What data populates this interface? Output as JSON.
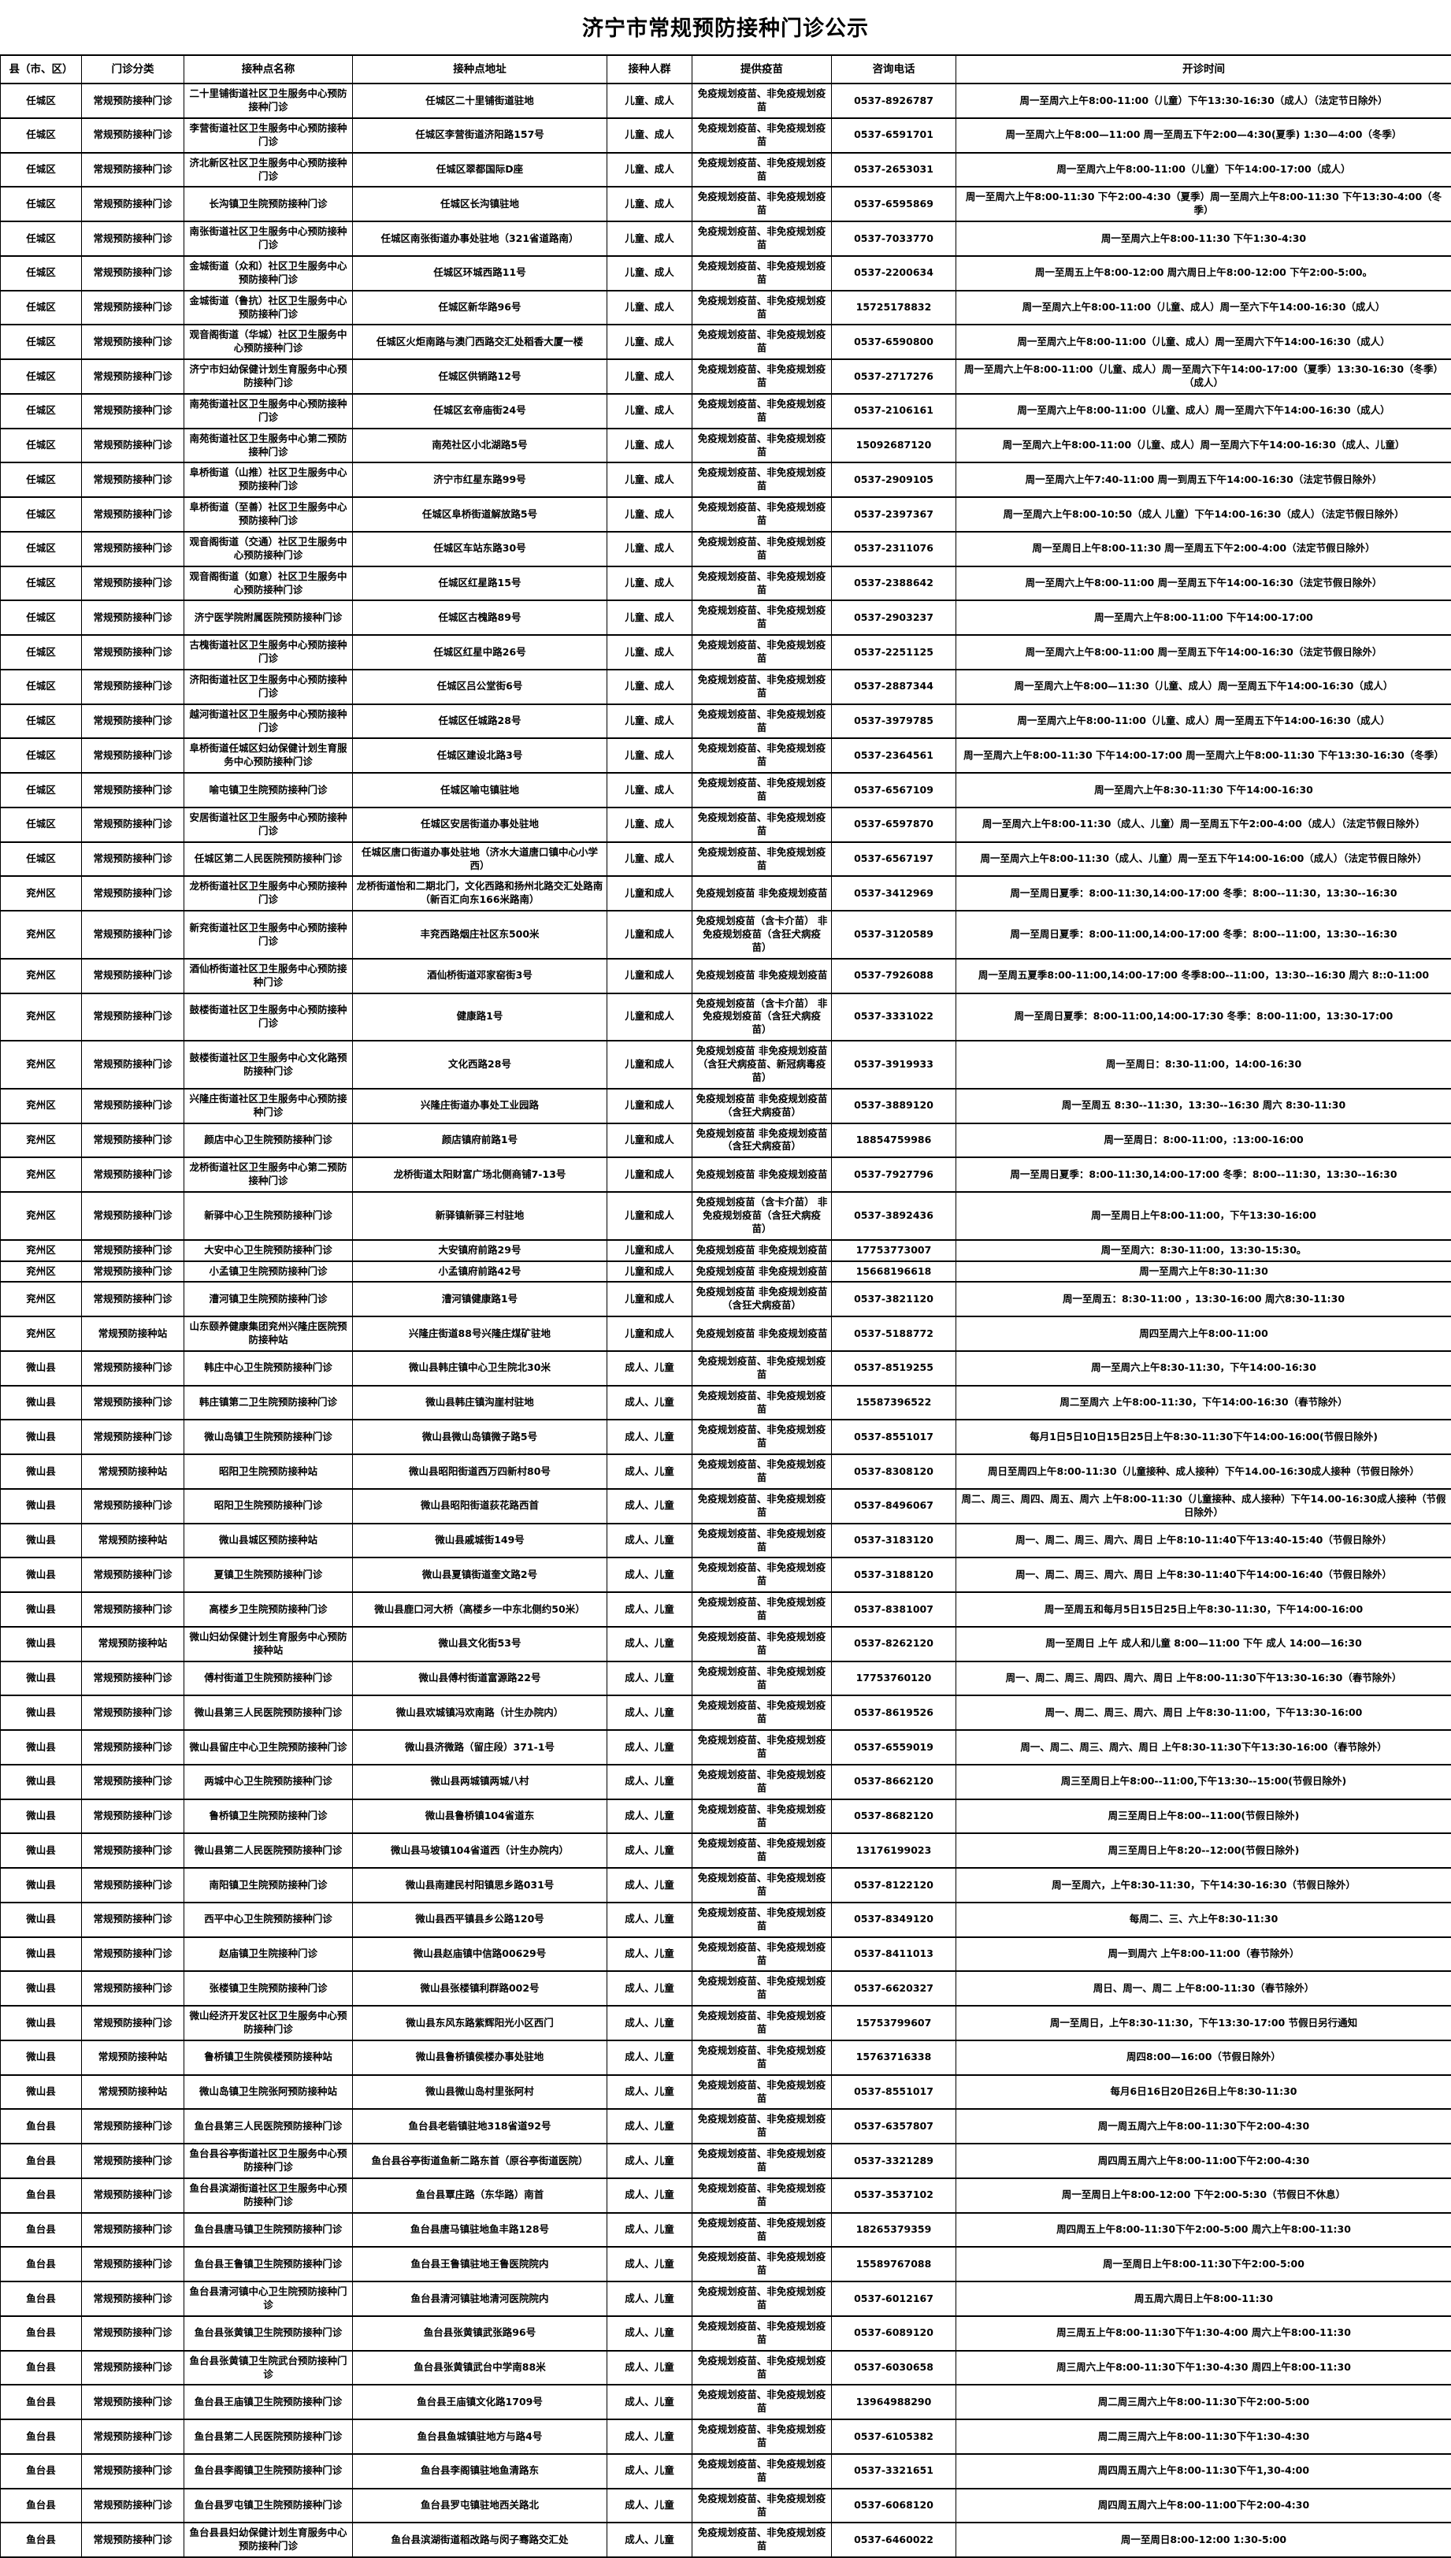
{
  "title": "济宁市常规预防接种门诊公示",
  "table": {
    "headers": [
      "县（市、区）",
      "门诊分类",
      "接种点名称",
      "接种点地址",
      "接种人群",
      "提供疫苗",
      "咨询电话",
      "开诊时间"
    ],
    "rows": [
      [
        "任城区",
        "常规预防接种门诊",
        "二十里铺街道社区卫生服务中心预防接种门诊",
        "任城区二十里铺街道驻地",
        "儿童、成人",
        "免疫规划疫苗、非免疫规划疫苗",
        "0537-8926787",
        "周一至周六上午8:00-11:00（儿童）下午13:30-16:30（成人）（法定节日除外）"
      ],
      [
        "任城区",
        "常规预防接种门诊",
        "李营街道社区卫生服务中心预防接种门诊",
        "任城区李营街道济阳路157号",
        "儿童、成人",
        "免疫规划疫苗、非免疫规划疫苗",
        "0537-6591701",
        "周一至周六上午8:00—11:00 周一至周五下午2:00—4:30(夏季) 1:30—4:00（冬季）"
      ],
      [
        "任城区",
        "常规预防接种门诊",
        "济北新区社区卫生服务中心预防接种门诊",
        "任城区翠都国际D座",
        "儿童、成人",
        "免疫规划疫苗、非免疫规划疫苗",
        "0537-2653031",
        "周一至周六上午8:00-11:00（儿童）下午14:00-17:00（成人）"
      ],
      [
        "任城区",
        "常规预防接种门诊",
        "长沟镇卫生院预防接种门诊",
        "任城区长沟镇驻地",
        "儿童、成人",
        "免疫规划疫苗、非免疫规划疫苗",
        "0537-6595869",
        "周一至周六上午8:00-11:30 下午2:00-4:30（夏季）周一至周六上午8:00-11:30 下午13:30-4:00（冬季）"
      ],
      [
        "任城区",
        "常规预防接种门诊",
        "南张街道社区卫生服务中心预防接种门诊",
        "任城区南张街道办事处驻地（321省道路南）",
        "儿童、成人",
        "免疫规划疫苗、非免疫规划疫苗",
        "0537-7033770",
        "周一至周六上午8:00-11:30 下午1:30-4:30"
      ],
      [
        "任城区",
        "常规预防接种门诊",
        "金城街道（众和）社区卫生服务中心预防接种门诊",
        "任城区环城西路11号",
        "儿童、成人",
        "免疫规划疫苗、非免疫规划疫苗",
        "0537-2200634",
        "周一至周五上午8:00-12:00 周六周日上午8:00-12:00 下午2:00-5:00。"
      ],
      [
        "任城区",
        "常规预防接种门诊",
        "金城街道（鲁抗）社区卫生服务中心预防接种门诊",
        "任城区新华路96号",
        "儿童、成人",
        "免疫规划疫苗、非免疫规划疫苗",
        "15725178832",
        "周一至周六上午8:00-11:00（儿童、成人）周一至六下午14:00-16:30（成人）"
      ],
      [
        "任城区",
        "常规预防接种门诊",
        "观音阁街道（华城）社区卫生服务中心预防接种门诊",
        "任城区火炬南路与澳门西路交汇处稻香大厦一楼",
        "儿童、成人",
        "免疫规划疫苗、非免疫规划疫苗",
        "0537-6590800",
        "周一至周六上午8:00-11:00（儿童、成人）周一至周六下午14:00-16:30（成人）"
      ],
      [
        "任城区",
        "常规预防接种门诊",
        "济宁市妇幼保健计划生育服务中心预防接种门诊",
        "任城区供销路12号",
        "儿童、成人",
        "免疫规划疫苗、非免疫规划疫苗",
        "0537-2717276",
        "周一至周六上午8:00-11:00（儿童、成人）周一至周六下午14:00-17:00（夏季）13:30-16:30（冬季）（成人）"
      ],
      [
        "任城区",
        "常规预防接种门诊",
        "南苑街道社区卫生服务中心预防接种门诊",
        "任城区玄帝庙街24号",
        "儿童、成人",
        "免疫规划疫苗、非免疫规划疫苗",
        "0537-2106161",
        "周一至周六上午8:00-11:00（儿童、成人）周一至周六下午14:00-16:30（成人）"
      ],
      [
        "任城区",
        "常规预防接种门诊",
        "南苑街道社区卫生服务中心第二预防接种门诊",
        "南苑社区小北湖路5号",
        "儿童、成人",
        "免疫规划疫苗、非免疫规划疫苗",
        "15092687120",
        "周一至周六上午8:00-11:00（儿童、成人）周一至周六下午14:00-16:30（成人、儿童）"
      ],
      [
        "任城区",
        "常规预防接种门诊",
        "阜桥街道（山推）社区卫生服务中心预防接种门诊",
        "济宁市红星东路99号",
        "儿童、成人",
        "免疫规划疫苗、非免疫规划疫苗",
        "0537-2909105",
        "周一至周六上午7:40-11:00 周一到周五下午14:00-16:30（法定节假日除外）"
      ],
      [
        "任城区",
        "常规预防接种门诊",
        "阜桥街道（至善）社区卫生服务中心预防接种门诊",
        "任城区阜桥街道解放路5号",
        "儿童、成人",
        "免疫规划疫苗、非免疫规划疫苗",
        "0537-2397367",
        "周一至周六上午8:00-10:50（成人 儿童）下午14:00-16:30（成人）（法定节假日除外）"
      ],
      [
        "任城区",
        "常规预防接种门诊",
        "观音阁街道（交通）社区卫生服务中心预防接种门诊",
        "任城区车站东路30号",
        "儿童、成人",
        "免疫规划疫苗、非免疫规划疫苗",
        "0537-2311076",
        "周一至周日上午8:00-11:30 周一至周五下午2:00-4:00（法定节假日除外）"
      ],
      [
        "任城区",
        "常规预防接种门诊",
        "观音阁街道（如意）社区卫生服务中心预防接种门诊",
        "任城区红星路15号",
        "儿童、成人",
        "免疫规划疫苗、非免疫规划疫苗",
        "0537-2388642",
        "周一至周六上午8:00-11:00 周一至周五下午14:00-16:30（法定节假日除外）"
      ],
      [
        "任城区",
        "常规预防接种门诊",
        "济宁医学院附属医院预防接种门诊",
        "任城区古槐路89号",
        "儿童、成人",
        "免疫规划疫苗、非免疫规划疫苗",
        "0537-2903237",
        "周一至周六上午8:00-11:00 下午14:00-17:00"
      ],
      [
        "任城区",
        "常规预防接种门诊",
        "古槐街道社区卫生服务中心预防接种门诊",
        "任城区红星中路26号",
        "儿童、成人",
        "免疫规划疫苗、非免疫规划疫苗",
        "0537-2251125",
        "周一至周六上午8:00-11:00 周一至周五下午14:00-16:30（法定节假日除外）"
      ],
      [
        "任城区",
        "常规预防接种门诊",
        "济阳街道社区卫生服务中心预防接种门诊",
        "任城区吕公堂街6号",
        "儿童、成人",
        "免疫规划疫苗、非免疫规划疫苗",
        "0537-2887344",
        "周一至周六上午8:00—11:30（儿童、成人）周一至周五下午14:00-16:30（成人）"
      ],
      [
        "任城区",
        "常规预防接种门诊",
        "越河街道社区卫生服务中心预防接种门诊",
        "任城区任城路28号",
        "儿童、成人",
        "免疫规划疫苗、非免疫规划疫苗",
        "0537-3979785",
        "周一至周六上午8:00-11:00（儿童、成人）周一至周五下午14:00-16:30（成人）"
      ],
      [
        "任城区",
        "常规预防接种门诊",
        "阜桥街道任城区妇幼保健计划生育服务中心预防接种门诊",
        "任城区建设北路3号",
        "儿童、成人",
        "免疫规划疫苗、非免疫规划疫苗",
        "0537-2364561",
        "周一至周六上午8:00-11:30 下午14:00-17:00 周一至周六上午8:00-11:30 下午13:30-16:30（冬季）"
      ],
      [
        "任城区",
        "常规预防接种门诊",
        "喻屯镇卫生院预防接种门诊",
        "任城区喻屯镇驻地",
        "儿童、成人",
        "免疫规划疫苗、非免疫规划疫苗",
        "0537-6567109",
        "周一至周六上午8:30-11:30 下午14:00-16:30"
      ],
      [
        "任城区",
        "常规预防接种门诊",
        "安居街道社区卫生服务中心预防接种门诊",
        "任城区安居街道办事处驻地",
        "儿童、成人",
        "免疫规划疫苗、非免疫规划疫苗",
        "0537-6597870",
        "周一至周六上午8:00-11:30（成人、儿童）周一至周五下午2:00-4:00（成人）（法定节假日除外）"
      ],
      [
        "任城区",
        "常规预防接种门诊",
        "任城区第二人民医院预防接种门诊",
        "任城区唐口街道办事处驻地（济水大道唐口镇中心小学西）",
        "儿童、成人",
        "免疫规划疫苗、非免疫规划疫苗",
        "0537-6567197",
        "周一至周六上午8:00-11:30（成人、儿童）周一至五下午14:00-16:00（成人）（法定节假日除外）"
      ],
      [
        "兖州区",
        "常规预防接种门诊",
        "龙桥街道社区卫生服务中心预防接种门诊",
        "龙桥街道怡和二期北门，文化西路和扬州北路交汇处路南（新百汇向东166米路南）",
        "儿童和成人",
        "免疫规划疫苗 非免疫规划疫苗",
        "0537-3412969",
        "周一至周日夏季：8:00-11:30,14:00-17:00 冬季：8:00--11:30，13:30--16:30"
      ],
      [
        "兖州区",
        "常规预防接种门诊",
        "新兖街道社区卫生服务中心预防接种门诊",
        "丰兖西路烟庄社区东500米",
        "儿童和成人",
        "免疫规划疫苗（含卡介苗） 非免疫规划疫苗（含狂犬病疫苗）",
        "0537-3120589",
        "周一至周日夏季：8:00-11:00,14:00-17:00 冬季：8:00--11:00，13:30--16:30"
      ],
      [
        "兖州区",
        "常规预防接种门诊",
        "酒仙桥街道社区卫生服务中心预防接种门诊",
        "酒仙桥街道邓家窑街3号",
        "儿童和成人",
        "免疫规划疫苗 非免疫规划疫苗",
        "0537-7926088",
        "周一至周五夏季8:00-11:00,14:00-17:00 冬季8:00--11:00，13:30--16:30 周六 8::0-11:00"
      ],
      [
        "兖州区",
        "常规预防接种门诊",
        "鼓楼街道社区卫生服务中心预防接种门诊",
        "健康路1号",
        "儿童和成人",
        "免疫规划疫苗（含卡介苗） 非免疫规划疫苗（含狂犬病疫苗）",
        "0537-3331022",
        "周一至周日夏季：8:00-11:00,14:00-17:30 冬季：8:00-11:00，13:30-17:00"
      ],
      [
        "兖州区",
        "常规预防接种门诊",
        "鼓楼街道社区卫生服务中心文化路预防接种门诊",
        "文化西路28号",
        "儿童和成人",
        "免疫规划疫苗 非免疫规划疫苗（含狂犬病疫苗、新冠病毒疫苗）",
        "0537-3919933",
        "周一至周日：8:30-11:00，14:00-16:30"
      ],
      [
        "兖州区",
        "常规预防接种门诊",
        "兴隆庄街道社区卫生服务中心预防接种门诊",
        "兴隆庄街道办事处工业园路",
        "儿童和成人",
        "免疫规划疫苗 非免疫规划疫苗（含狂犬病疫苗）",
        "0537-3889120",
        "周一至周五 8:30--11:30，13:30--16:30 周六 8:30-11:30"
      ],
      [
        "兖州区",
        "常规预防接种门诊",
        "颜店中心卫生院预防接种门诊",
        "颜店镇府前路1号",
        "儿童和成人",
        "免疫规划疫苗 非免疫规划疫苗（含狂犬病疫苗）",
        "18854759986",
        "周一至周日：8:00-11:00，:13:00-16:00"
      ],
      [
        "兖州区",
        "常规预防接种门诊",
        "龙桥街道社区卫生服务中心第二预防接种门诊",
        "龙桥街道太阳财富广场北侧商铺7-13号",
        "儿童和成人",
        "免疫规划疫苗 非免疫规划疫苗",
        "0537-7927796",
        "周一至周日夏季：8:00-11:30,14:00-17:00 冬季：8:00--11:30，13:30--16:30"
      ],
      [
        "兖州区",
        "常规预防接种门诊",
        "新驿中心卫生院预防接种门诊",
        "新驿镇新驿三村驻地",
        "儿童和成人",
        "免疫规划疫苗（含卡介苗） 非免疫规划疫苗（含狂犬病疫苗）",
        "0537-3892436",
        "周一至周日上午8:00-11:00，下午13:30-16:00"
      ],
      [
        "兖州区",
        "常规预防接种门诊",
        "大安中心卫生院预防接种门诊",
        "大安镇府前路29号",
        "儿童和成人",
        "免疫规划疫苗 非免疫规划疫苗",
        "17753773007",
        "周一至周六：8:30-11:00，13:30-15:30。"
      ],
      [
        "兖州区",
        "常规预防接种门诊",
        "小孟镇卫生院预防接种门诊",
        "小孟镇府前路42号",
        "儿童和成人",
        "免疫规划疫苗 非免疫规划疫苗",
        "15668196618",
        "周一至周六上午8:30-11:30"
      ],
      [
        "兖州区",
        "常规预防接种门诊",
        "漕河镇卫生院预防接种门诊",
        "漕河镇健康路1号",
        "儿童和成人",
        "免疫规划疫苗 非免疫规划疫苗（含狂犬病疫苗）",
        "0537-3821120",
        "周一至周五：8:30-11:00 ，13:30-16:00 周六8:30-11:30"
      ],
      [
        "兖州区",
        "常规预防接种站",
        "山东颐养健康集团兖州兴隆庄医院预防接种站",
        "兴隆庄街道88号兴隆庄煤矿驻地",
        "儿童和成人",
        "免疫规划疫苗 非免疫规划疫苗",
        "0537-5188772",
        "周四至周六上午8:00-11:00"
      ],
      [
        "微山县",
        "常规预防接种门诊",
        "韩庄中心卫生院预防接种门诊",
        "微山县韩庄镇中心卫生院北30米",
        "成人、儿童",
        "免疫规划疫苗、非免疫规划疫苗",
        "0537-8519255",
        "周一至周六上午8:30-11:30，下午14:00-16:30"
      ],
      [
        "微山县",
        "常规预防接种门诊",
        "韩庄镇第二卫生院预防接种门诊",
        "微山县韩庄镇沟崖村驻地",
        "成人、儿童",
        "免疫规划疫苗、非免疫规划疫苗",
        "15587396522",
        "周二至周六 上午8:00-11:30，下午14:00-16:30（春节除外）"
      ],
      [
        "微山县",
        "常规预防接种门诊",
        "微山岛镇卫生院预防接种门诊",
        "微山县微山岛镇微子路5号",
        "成人、儿童",
        "免疫规划疫苗、非免疫规划疫苗",
        "0537-8551017",
        "每月1日5日10日15日25日上午8:30-11:30下午14:00-16:00(节假日除外)"
      ],
      [
        "微山县",
        "常规预防接种站",
        "昭阳卫生院预防接种站",
        "微山县昭阳街道西万四新村80号",
        "成人、儿童",
        "免疫规划疫苗、非免疫规划疫苗",
        "0537-8308120",
        "周日至周四上午8:00-11:30（儿童接种、成人接种）下午14.00-16:30成人接种（节假日除外）"
      ],
      [
        "微山县",
        "常规预防接种门诊",
        "昭阳卫生院预防接种门诊",
        "微山县昭阳街道荻花路西首",
        "成人、儿童",
        "免疫规划疫苗、非免疫规划疫苗",
        "0537-8496067",
        "周二、周三、周四、周五、周六 上午8:00-11:30（儿童接种、成人接种）下午14.00-16:30成人接种（节假日除外）"
      ],
      [
        "微山县",
        "常规预防接种站",
        "微山县城区预防接种站",
        "微山县戚城街149号",
        "成人、儿童",
        "免疫规划疫苗、非免疫规划疫苗",
        "0537-3183120",
        "周一、周二、周三、周六、周日 上午8:10-11:40下午13:40-15:40（节假日除外）"
      ],
      [
        "微山县",
        "常规预防接种门诊",
        "夏镇卫生院预防接种门诊",
        "微山县夏镇街道奎文路2号",
        "成人、儿童",
        "免疫规划疫苗、非免疫规划疫苗",
        "0537-3188120",
        "周一、周二、周三、周六、周日 上午8:30-11:40下午14:00-16:40（节假日除外）"
      ],
      [
        "微山县",
        "常规预防接种门诊",
        "高楼乡卫生院预防接种门诊",
        "微山县鹿口河大桥（高楼乡一中东北侧约50米）",
        "成人、儿童",
        "免疫规划疫苗、非免疫规划疫苗",
        "0537-8381007",
        "周一至周五和每月5日15日25日上午8:30-11:30，下午14:00-16:00"
      ],
      [
        "微山县",
        "常规预防接种站",
        "微山妇幼保健计划生育服务中心预防接种站",
        "微山县文化街53号",
        "成人、儿童",
        "免疫规划疫苗、非免疫规划疫苗",
        "0537-8262120",
        "周一至周日 上午 成人和儿童 8:00—11:00 下午 成人 14:00—16:30"
      ],
      [
        "微山县",
        "常规预防接种门诊",
        "傅村街道卫生院预防接种门诊",
        "微山县傅村街道富源路22号",
        "成人、儿童",
        "免疫规划疫苗、非免疫规划疫苗",
        "17753760120",
        "周一、周二、周三、周四、周六、周日 上午8:00-11:30下午13:30-16:30（春节除外）"
      ],
      [
        "微山县",
        "常规预防接种门诊",
        "微山县第三人民医院预防接种门诊",
        "微山县欢城镇冯欢南路（计生办院内）",
        "成人、儿童",
        "免疫规划疫苗、非免疫规划疫苗",
        "0537-8619526",
        "周一、周二、周三、周六、周日 上午8:30-11:00，下午13:30-16:00"
      ],
      [
        "微山县",
        "常规预防接种门诊",
        "微山县留庄中心卫生院预防接种门诊",
        "微山县济微路（留庄段）371-1号",
        "成人、儿童",
        "免疫规划疫苗、非免疫规划疫苗",
        "0537-6559019",
        "周一、周二、周三、周六、周日 上午8:30-11:30下午13:30-16:00（春节除外）"
      ],
      [
        "微山县",
        "常规预防接种门诊",
        "两城中心卫生院预防接种门诊",
        "微山县两城镇两城八村",
        "成人、儿童",
        "免疫规划疫苗、非免疫规划疫苗",
        "0537-8662120",
        "周三至周日上午8:00--11:00,下午13:30--15:00(节假日除外)"
      ],
      [
        "微山县",
        "常规预防接种门诊",
        "鲁桥镇卫生院预防接种门诊",
        "微山县鲁桥镇104省道东",
        "成人、儿童",
        "免疫规划疫苗、非免疫规划疫苗",
        "0537-8682120",
        "周三至周日上午8:00--11:00(节假日除外)"
      ],
      [
        "微山县",
        "常规预防接种门诊",
        "微山县第二人民医院预防接种门诊",
        "微山县马坡镇104省道西（计生办院内）",
        "成人、儿童",
        "免疫规划疫苗、非免疫规划疫苗",
        "13176199023",
        "周三至周日上午8:20--12:00(节假日除外)"
      ],
      [
        "微山县",
        "常规预防接种门诊",
        "南阳镇卫生院预防接种门诊",
        "微山县南建民村阳镇思乡路031号",
        "成人、儿童",
        "免疫规划疫苗、非免疫规划疫苗",
        "0537-8122120",
        "周一至周六，上午8:30-11:30，下午14:30-16:30（节假日除外）"
      ],
      [
        "微山县",
        "常规预防接种门诊",
        "西平中心卫生院预防接种门诊",
        "微山县西平镇县乡公路120号",
        "成人、儿童",
        "免疫规划疫苗、非免疫规划疫苗",
        "0537-8349120",
        "每周二、三、六上午8:30-11:30"
      ],
      [
        "微山县",
        "常规预防接种门诊",
        "赵庙镇卫生院接种门诊",
        "微山县赵庙镇中信路00629号",
        "成人、儿童",
        "免疫规划疫苗、非免疫规划疫苗",
        "0537-8411013",
        "周一到周六 上午8:00-11:00（春节除外）"
      ],
      [
        "微山县",
        "常规预防接种门诊",
        "张楼镇卫生院预防接种门诊",
        "微山县张楼镇利群路002号",
        "成人、儿童",
        "免疫规划疫苗、非免疫规划疫苗",
        "0537-6620327",
        "周日、周一、周二 上午8:00-11:30（春节除外）"
      ],
      [
        "微山县",
        "常规预防接种门诊",
        "微山经济开发区社区卫生服务中心预防接种门诊",
        "微山县东风东路紫辉阳光小区西门",
        "成人、儿童",
        "免疫规划疫苗、非免疫规划疫苗",
        "15753799607",
        "周一至周日，上午8:30-11:30，下午13:30-17:00 节假日另行通知"
      ],
      [
        "微山县",
        "常规预防接种站",
        "鲁桥镇卫生院侯楼预防接种站",
        "微山县鲁桥镇侯楼办事处驻地",
        "成人、儿童",
        "免疫规划疫苗、非免疫规划疫苗",
        "15763716338",
        "周四8:00—16:00（节假日除外）"
      ],
      [
        "微山县",
        "常规预防接种站",
        "微山岛镇卫生院张阿预防接种站",
        "微山县微山岛村里张阿村",
        "成人、儿童",
        "免疫规划疫苗、非免疫规划疫苗",
        "0537-8551017",
        "每月6日16日20日26日上午8:30-11:30"
      ],
      [
        "鱼台县",
        "常规预防接种门诊",
        "鱼台县第三人民医院预防接种门诊",
        "鱼台县老砦镇驻地318省道92号",
        "成人、儿童",
        "免疫规划疫苗、非免疫规划疫苗",
        "0537-6357807",
        "周一周五周六上午8:00-11:30下午2:00-4:30"
      ],
      [
        "鱼台县",
        "常规预防接种门诊",
        "鱼台县谷亭街道社区卫生服务中心预防接种门诊",
        "鱼台县谷亭街道鱼新二路东首（原谷亭街道医院）",
        "成人、儿童",
        "免疫规划疫苗、非免疫规划疫苗",
        "0537-3321289",
        "周四周五周六上午8:00-11:00下午2:00-4:30"
      ],
      [
        "鱼台县",
        "常规预防接种门诊",
        "鱼台县滨湖街道社区卫生服务中心预防接种门诊",
        "鱼台县覃庄路（东华路）南首",
        "成人、儿童",
        "免疫规划疫苗、非免疫规划疫苗",
        "0537-3537102",
        "周一至周日上午8:00-12:00 下午2:00-5:30（节假日不休息）"
      ],
      [
        "鱼台县",
        "常规预防接种门诊",
        "鱼台县唐马镇卫生院预防接种门诊",
        "鱼台县唐马镇驻地鱼丰路128号",
        "成人、儿童",
        "免疫规划疫苗、非免疫规划疫苗",
        "18265379359",
        "周四周五上午8:00-11:30下午2:00-5:00 周六上午8:00-11:30"
      ],
      [
        "鱼台县",
        "常规预防接种门诊",
        "鱼台县王鲁镇卫生院预防接种门诊",
        "鱼台县王鲁镇驻地王鲁医院院内",
        "成人、儿童",
        "免疫规划疫苗、非免疫规划疫苗",
        "15589767088",
        "周一至周日上午8:00-11:30下午2:00-5:00"
      ],
      [
        "鱼台县",
        "常规预防接种门诊",
        "鱼台县清河镇中心卫生院预防接种门诊",
        "鱼台县清河镇驻地清河医院院内",
        "成人、儿童",
        "免疫规划疫苗、非免疫规划疫苗",
        "0537-6012167",
        "周五周六周日上午8:00-11:30"
      ],
      [
        "鱼台县",
        "常规预防接种门诊",
        "鱼台县张黄镇卫生院预防接种门诊",
        "鱼台县张黄镇武张路96号",
        "成人、儿童",
        "免疫规划疫苗、非免疫规划疫苗",
        "0537-6089120",
        "周三周五上午8:00-11:30下午1:30-4:00 周六上午8:00-11:30"
      ],
      [
        "鱼台县",
        "常规预防接种门诊",
        "鱼台县张黄镇卫生院武台预防接种门诊",
        "鱼台县张黄镇武台中学南88米",
        "成人、儿童",
        "免疫规划疫苗、非免疫规划疫苗",
        "0537-6030658",
        "周三周六上午8:00-11:30下午1:30-4:30 周四上午8:00-11:30"
      ],
      [
        "鱼台县",
        "常规预防接种门诊",
        "鱼台县王庙镇卫生院预防接种门诊",
        "鱼台县王庙镇文化路1709号",
        "成人、儿童",
        "免疫规划疫苗、非免疫规划疫苗",
        "13964988290",
        "周二周三周六上午8:00-11:30下午2:00-5:00"
      ],
      [
        "鱼台县",
        "常规预防接种门诊",
        "鱼台县第二人民医院预防接种门诊",
        "鱼台县鱼城镇驻地方与路4号",
        "成人、儿童",
        "免疫规划疫苗、非免疫规划疫苗",
        "0537-6105382",
        "周二周三周六上午8:00-11:30下午1:30-4:30"
      ],
      [
        "鱼台县",
        "常规预防接种门诊",
        "鱼台县李阁镇卫生院预防接种门诊",
        "鱼台县李阁镇驻地鱼清路东",
        "成人、儿童",
        "免疫规划疫苗、非免疫规划疫苗",
        "0537-3321651",
        "周四周五周六上午8:00-11:30下午1,30-4:00"
      ],
      [
        "鱼台县",
        "常规预防接种门诊",
        "鱼台县罗屯镇卫生院预防接种门诊",
        "鱼台县罗屯镇驻地西关路北",
        "成人、儿童",
        "免疫规划疫苗、非免疫规划疫苗",
        "0537-6068120",
        "周四周五周六上午8:00-11:00下午2:00-4:30"
      ],
      [
        "鱼台县",
        "常规预防接种门诊",
        "鱼台县县妇幼保健计划生育服务中心预防接种门诊",
        "鱼台县滨湖街道稻改路与闵子骞路交汇处",
        "成人、儿童",
        "免疫规划疫苗、非免疫规划疫苗",
        "0537-6460022",
        "周一至周日8:00-12:00  1:30-5:00"
      ]
    ]
  }
}
